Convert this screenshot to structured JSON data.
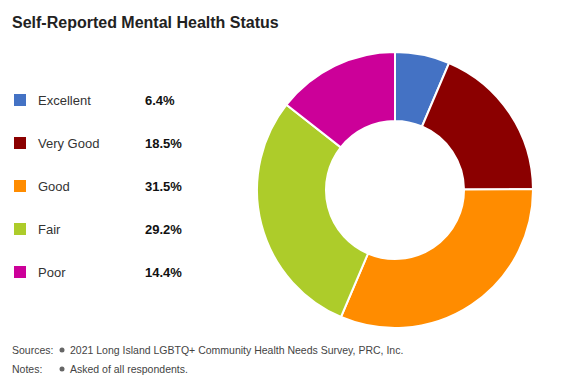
{
  "chart_data": {
    "type": "pie",
    "title": "Self-Reported Mental Health Status",
    "categories": [
      "Excellent",
      "Very Good",
      "Good",
      "Fair",
      "Poor"
    ],
    "values": [
      6.4,
      18.5,
      31.5,
      29.2,
      14.4
    ],
    "value_labels": [
      "6.4%",
      "18.5%",
      "31.5%",
      "29.2%",
      "14.4%"
    ],
    "colors": [
      "#4472C4",
      "#8B0000",
      "#FF8C00",
      "#ADCC2A",
      "#CC0099"
    ],
    "legend": "left",
    "annotations": [
      {
        "label": "Sources:",
        "text": "2021 Long Island LGBTQ+ Community Health Needs Survey, PRC, Inc."
      },
      {
        "label": "Notes:",
        "text": "Asked of all respondents."
      }
    ]
  }
}
